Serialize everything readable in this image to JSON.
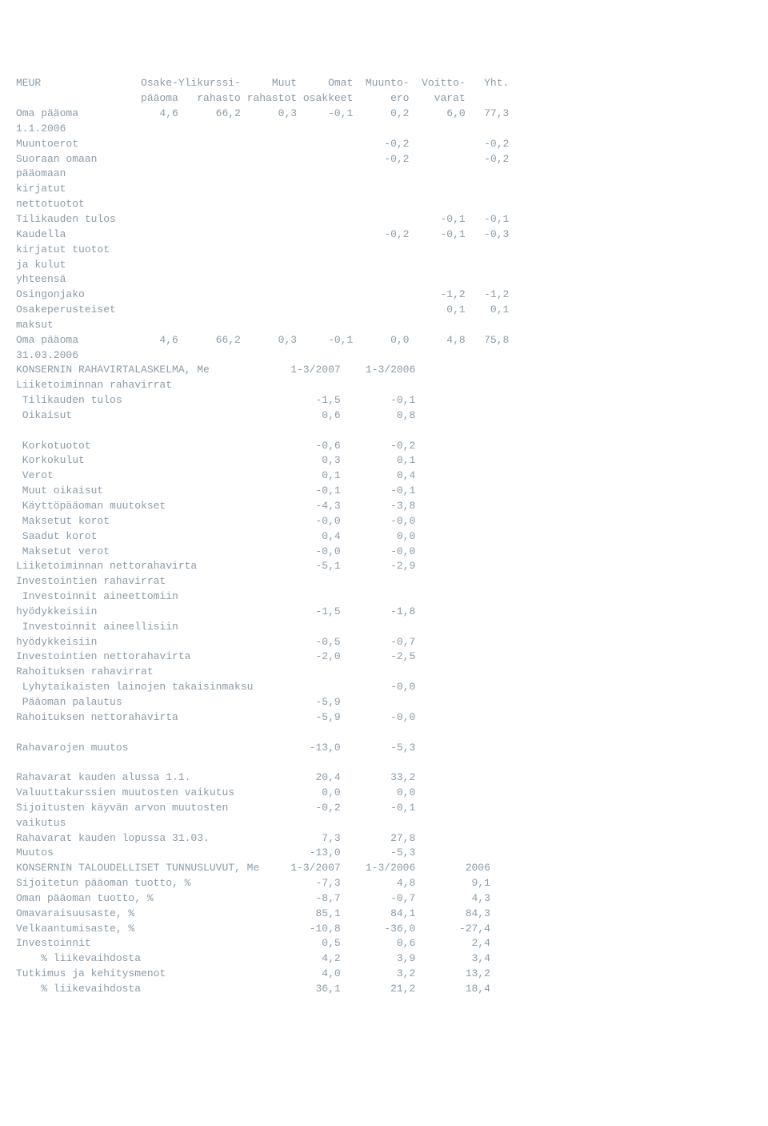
{
  "equity_table": {
    "header1": {
      "c0": "MEUR",
      "c1": "Osake-",
      "c2": "Ylikurssi-",
      "c3": "Muut",
      "c4": "Omat",
      "c5": "Muunto-",
      "c6": "Voitto-",
      "c7": "Yht."
    },
    "header2": {
      "c0": "",
      "c1": "pääoma",
      "c2": "rahasto",
      "c3": "rahastot",
      "c4": "osakkeet",
      "c5": "ero",
      "c6": "varat",
      "c7": ""
    },
    "rows": [
      {
        "label": "Oma pääoma",
        "c1": "4,6",
        "c2": "66,2",
        "c3": "0,3",
        "c4": "-0,1",
        "c5": "0,2",
        "c6": "6,0",
        "c7": "77,3"
      },
      {
        "label": "1.1.2006"
      },
      {
        "label": "Muuntoerot",
        "c5": "-0,2",
        "c7": "-0,2"
      },
      {
        "label": "Suoraan omaan",
        "c5": "-0,2",
        "c7": "-0,2"
      },
      {
        "label": "pääomaan"
      },
      {
        "label": "kirjatut"
      },
      {
        "label": "nettotuotot"
      },
      {
        "label": "Tilikauden tulos",
        "c6": "-0,1",
        "c7": "-0,1"
      },
      {
        "label": "Kaudella",
        "c5": "-0,2",
        "c6": "-0,1",
        "c7": "-0,3"
      },
      {
        "label": "kirjatut tuotot"
      },
      {
        "label": "ja kulut"
      },
      {
        "label": "yhteensä"
      },
      {
        "label": "Osingonjako",
        "c6": "-1,2",
        "c7": "-1,2"
      },
      {
        "label": "Osakeperusteiset",
        "c6": "0,1",
        "c7": "0,1"
      },
      {
        "label": "maksut"
      },
      {
        "label": "Oma pääoma",
        "c1": "4,6",
        "c2": "66,2",
        "c3": "0,3",
        "c4": "-0,1",
        "c5": "0,0",
        "c6": "4,8",
        "c7": "75,8"
      },
      {
        "label": "31.03.2006"
      }
    ]
  },
  "cashflow": {
    "title": "KONSERNIN RAHAVIRTALASKELMA, Me",
    "h1": "1-3/2007",
    "h2": "1-3/2006",
    "rows": [
      {
        "label": "Liiketoiminnan rahavirrat"
      },
      {
        "label": " Tilikauden tulos",
        "v1": "-1,5",
        "v2": "-0,1"
      },
      {
        "label": " Oikaisut",
        "v1": "0,6",
        "v2": "0,8"
      },
      {
        "label": ""
      },
      {
        "label": " Korkotuotot",
        "v1": "-0,6",
        "v2": "-0,2"
      },
      {
        "label": " Korkokulut",
        "v1": "0,3",
        "v2": "0,1"
      },
      {
        "label": " Verot",
        "v1": "0,1",
        "v2": "0,4"
      },
      {
        "label": " Muut oikaisut",
        "v1": "-0,1",
        "v2": "-0,1"
      },
      {
        "label": " Käyttöpääoman muutokset",
        "v1": "-4,3",
        "v2": "-3,8"
      },
      {
        "label": " Maksetut korot",
        "v1": "-0,0",
        "v2": "-0,0"
      },
      {
        "label": " Saadut korot",
        "v1": "0,4",
        "v2": "0,0"
      },
      {
        "label": " Maksetut verot",
        "v1": "-0,0",
        "v2": "-0,0"
      },
      {
        "label": "Liiketoiminnan nettorahavirta",
        "v1": "-5,1",
        "v2": "-2,9"
      },
      {
        "label": "Investointien rahavirrat"
      },
      {
        "label": " Investoinnit aineettomiin"
      },
      {
        "label": "hyödykkeisiin",
        "v1": "-1,5",
        "v2": "-1,8"
      },
      {
        "label": " Investoinnit aineellisiin"
      },
      {
        "label": "hyödykkeisiin",
        "v1": "-0,5",
        "v2": "-0,7"
      },
      {
        "label": "Investointien nettorahavirta",
        "v1": "-2,0",
        "v2": "-2,5"
      },
      {
        "label": "Rahoituksen rahavirrat"
      },
      {
        "label": " Lyhytaikaisten lainojen takaisinmaksu",
        "v2": "-0,0"
      },
      {
        "label": " Pääoman palautus",
        "v1": "-5,9"
      },
      {
        "label": "Rahoituksen nettorahavirta",
        "v1": "-5,9",
        "v2": "-0,0"
      },
      {
        "label": ""
      },
      {
        "label": "Rahavarojen muutos",
        "v1": "-13,0",
        "v2": "-5,3"
      },
      {
        "label": ""
      },
      {
        "label": "Rahavarat kauden alussa 1.1.",
        "v1": "20,4",
        "v2": "33,2"
      },
      {
        "label": "Valuuttakurssien muutosten vaikutus",
        "v1": "0,0",
        "v2": "0,0"
      },
      {
        "label": "Sijoitusten käyvän arvon muutosten",
        "v1": "-0,2",
        "v2": "-0,1"
      },
      {
        "label": "vaikutus"
      },
      {
        "label": "Rahavarat kauden lopussa 31.03.",
        "v1": "7,3",
        "v2": "27,8"
      },
      {
        "label": "Muutos",
        "v1": "-13,0",
        "v2": "-5,3"
      }
    ]
  },
  "ratios": {
    "title": "KONSERNIN TALOUDELLISET TUNNUSLUVUT, Me",
    "h1": "1-3/2007",
    "h2": "1-3/2006",
    "h3": "2006",
    "rows": [
      {
        "label": "Sijoitetun pääoman tuotto, %",
        "v1": "-7,3",
        "v2": "4,8",
        "v3": "9,1"
      },
      {
        "label": "Oman pääoman tuotto, %",
        "v1": "-8,7",
        "v2": "-0,7",
        "v3": "4,3"
      },
      {
        "label": "Omavaraisuusaste, %",
        "v1": "85,1",
        "v2": "84,1",
        "v3": "84,3"
      },
      {
        "label": "Velkaantumisaste, %",
        "v1": "-10,8",
        "v2": "-36,0",
        "v3": "-27,4"
      },
      {
        "label": "Investoinnit",
        "v1": "0,5",
        "v2": "0,6",
        "v3": "2,4"
      },
      {
        "label": "    % liikevaihdosta",
        "v1": "4,2",
        "v2": "3,9",
        "v3": "3,4"
      },
      {
        "label": "Tutkimus ja kehitysmenot",
        "v1": "4,0",
        "v2": "3,2",
        "v3": "13,2"
      },
      {
        "label": "    % liikevaihdosta",
        "v1": "36,1",
        "v2": "21,2",
        "v3": "18,4"
      }
    ]
  },
  "style": {
    "text_color": "#8a9ba8",
    "font_family": "Courier New",
    "font_size": 13,
    "background": "#ffffff"
  }
}
